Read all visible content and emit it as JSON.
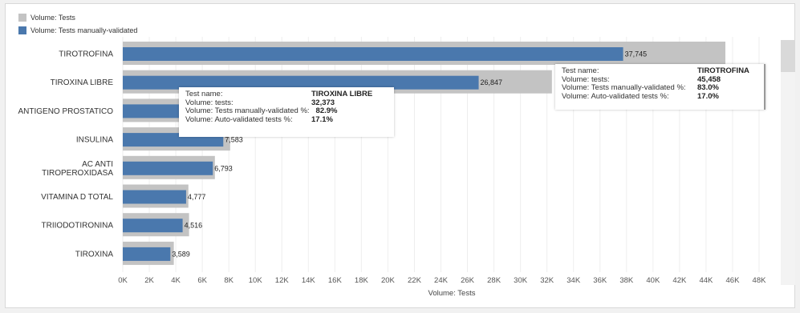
{
  "legend": {
    "items": [
      {
        "label": "Volume: Tests",
        "color": "#c3c3c3"
      },
      {
        "label": "Volume: Tests manually-validated",
        "color": "#4a78ad"
      }
    ]
  },
  "colors": {
    "tests": "#c3c3c3",
    "manual": "#4a78ad",
    "grid": "#eeeeee"
  },
  "chart_data": {
    "type": "bar",
    "orientation": "horizontal",
    "categories": [
      "TIROTROFINA",
      "TIROXINA LIBRE",
      "ANTIGENO PROSTATICO",
      "INSULINA",
      "AC ANTI\nTIROPEROXIDASA",
      "VITAMINA D TOTAL",
      "TRIIODOTIRONINA",
      "TIROXINA"
    ],
    "series": [
      {
        "name": "Volume: Tests",
        "values": [
          45458,
          32373,
          10000,
          8100,
          6950,
          4950,
          5000,
          3850
        ]
      },
      {
        "name": "Volume: Tests manually-validated",
        "values": [
          37745,
          26847,
          8600,
          7583,
          6793,
          4777,
          4516,
          3589
        ]
      }
    ],
    "data_labels": [
      {
        "category": "TIROTROFINA",
        "text": "37,745"
      },
      {
        "category": "TIROXINA LIBRE",
        "text": "26,847"
      },
      {
        "category": "INSULINA",
        "text": "7,583"
      },
      {
        "category": "AC ANTI\nTIROPEROXIDASA",
        "text": "6,793"
      },
      {
        "category": "VITAMINA D TOTAL",
        "text": "4,777"
      },
      {
        "category": "TRIIODOTIRONINA",
        "text": "4,516"
      },
      {
        "category": "TIROXINA",
        "text": "3,589"
      }
    ],
    "xlabel": "Volume: Tests",
    "ylabel": "",
    "xlim": [
      0,
      48000
    ],
    "x_ticks": [
      "0K",
      "2K",
      "4K",
      "6K",
      "8K",
      "10K",
      "12K",
      "14K",
      "16K",
      "18K",
      "20K",
      "22K",
      "24K",
      "26K",
      "28K",
      "30K",
      "32K",
      "34K",
      "36K",
      "38K",
      "40K",
      "42K",
      "44K",
      "46K",
      "48K"
    ],
    "grid": true
  },
  "tooltips": [
    {
      "name": "tooltip-tiroxina-libre",
      "rows": [
        {
          "key": "Test name:",
          "value": "TIROXINA LIBRE"
        },
        {
          "key": "Volume: tests:",
          "value": "32,373"
        },
        {
          "key": "Volume: Tests manually-validated %:",
          "value": "82.9%"
        },
        {
          "key": "Volume: Auto-validated tests %:",
          "value": "17.1%"
        }
      ]
    },
    {
      "name": "tooltip-tirotrofina",
      "rows": [
        {
          "key": "Test name:",
          "value": "TIROTROFINA"
        },
        {
          "key": "Volume: tests:",
          "value": "45,458"
        },
        {
          "key": "Volume: Tests manually-validated %:",
          "value": "83.0%"
        },
        {
          "key": "Volume: Auto-validated tests %:",
          "value": "17.0%"
        }
      ]
    }
  ]
}
